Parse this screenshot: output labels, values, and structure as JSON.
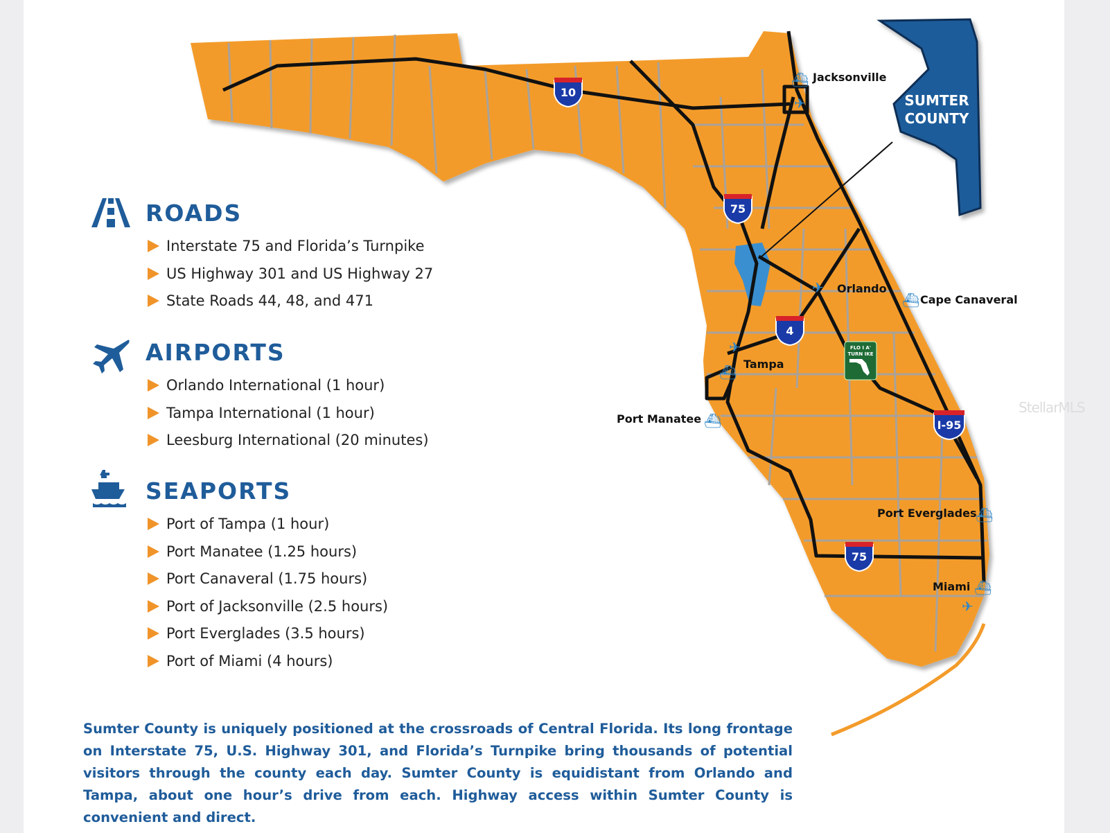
{
  "colors": {
    "state_fill": "#f39b2a",
    "county_lines": "#a9a29a",
    "roads": "#111111",
    "brand_blue": "#1f5c9a",
    "bullet": "#f0942a",
    "interstate_blue": "#1a3aa8",
    "interstate_red": "#d8222a",
    "turnpike_green": "#1e6b35"
  },
  "callout": {
    "line1": "SUMTER",
    "line2": "COUNTY"
  },
  "shields": {
    "i10": "10",
    "i75_north": "75",
    "i4": "4",
    "i95": "I-95",
    "i75_south": "75"
  },
  "turnpike_sign": {
    "line1": "FLO I A'",
    "line2": "TURN IKE"
  },
  "cities": {
    "jacksonville": "Jacksonville",
    "orlando": "Orlando",
    "cape_canaveral": "Cape Canaveral",
    "tampa": "Tampa",
    "port_manatee": "Port Manatee",
    "port_everglades": "Port Everglades",
    "miami": "Miami"
  },
  "sections": [
    {
      "icon": "road-icon",
      "title": "ROADS",
      "items": [
        "Interstate 75 and Florida’s Turnpike",
        "US Highway 301 and US Highway 27",
        "State Roads 44, 48, and 471"
      ]
    },
    {
      "icon": "airplane-icon",
      "title": "AIRPORTS",
      "items": [
        "Orlando International (1 hour)",
        "Tampa International (1 hour)",
        "Leesburg International (20 minutes)"
      ]
    },
    {
      "icon": "ship-icon",
      "title": "SEAPORTS",
      "items": [
        "Port of Tampa (1 hour)",
        "Port Manatee (1.25 hours)",
        "Port Canaveral (1.75 hours)",
        "Port of Jacksonville (2.5 hours)",
        "Port Everglades (3.5 hours)",
        "Port of Miami (4 hours)"
      ]
    }
  ],
  "description": "Sumter County is uniquely positioned at the crossroads of Central Florida. Its long frontage on Interstate 75, U.S. Highway 301, and Florida’s Turnpike bring thousands of potential visitors through the county each day. Sumter County is equidistant from Orlando and Tampa, about one hour’s drive from each. Highway access within Sumter County is convenient and direct.",
  "watermark": "StellarMLS"
}
